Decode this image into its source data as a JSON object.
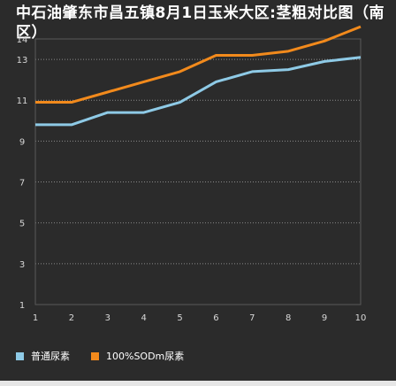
{
  "chart_data": {
    "type": "line",
    "title": "中石油肇东市昌五镇8月1日玉米大区:茎粗对比图（南区）",
    "x": [
      1,
      2,
      3,
      4,
      5,
      6,
      7,
      8,
      9,
      10
    ],
    "y_ticks": [
      1,
      3,
      5,
      7,
      9,
      11,
      13,
      14
    ],
    "ylim": [
      1,
      14
    ],
    "xlim": [
      1,
      10
    ],
    "grid": true,
    "legend_position": "bottom-left",
    "series": [
      {
        "name": "普通尿素",
        "color": "#8ecae6",
        "values": [
          9.8,
          9.8,
          10.4,
          10.4,
          10.9,
          11.9,
          12.4,
          12.5,
          12.9,
          13.1
        ]
      },
      {
        "name": "100%SODm尿素",
        "color": "#f28a1c",
        "values": [
          10.9,
          10.9,
          11.4,
          11.9,
          12.4,
          13.2,
          13.2,
          13.4,
          13.9,
          14.6
        ]
      }
    ]
  }
}
